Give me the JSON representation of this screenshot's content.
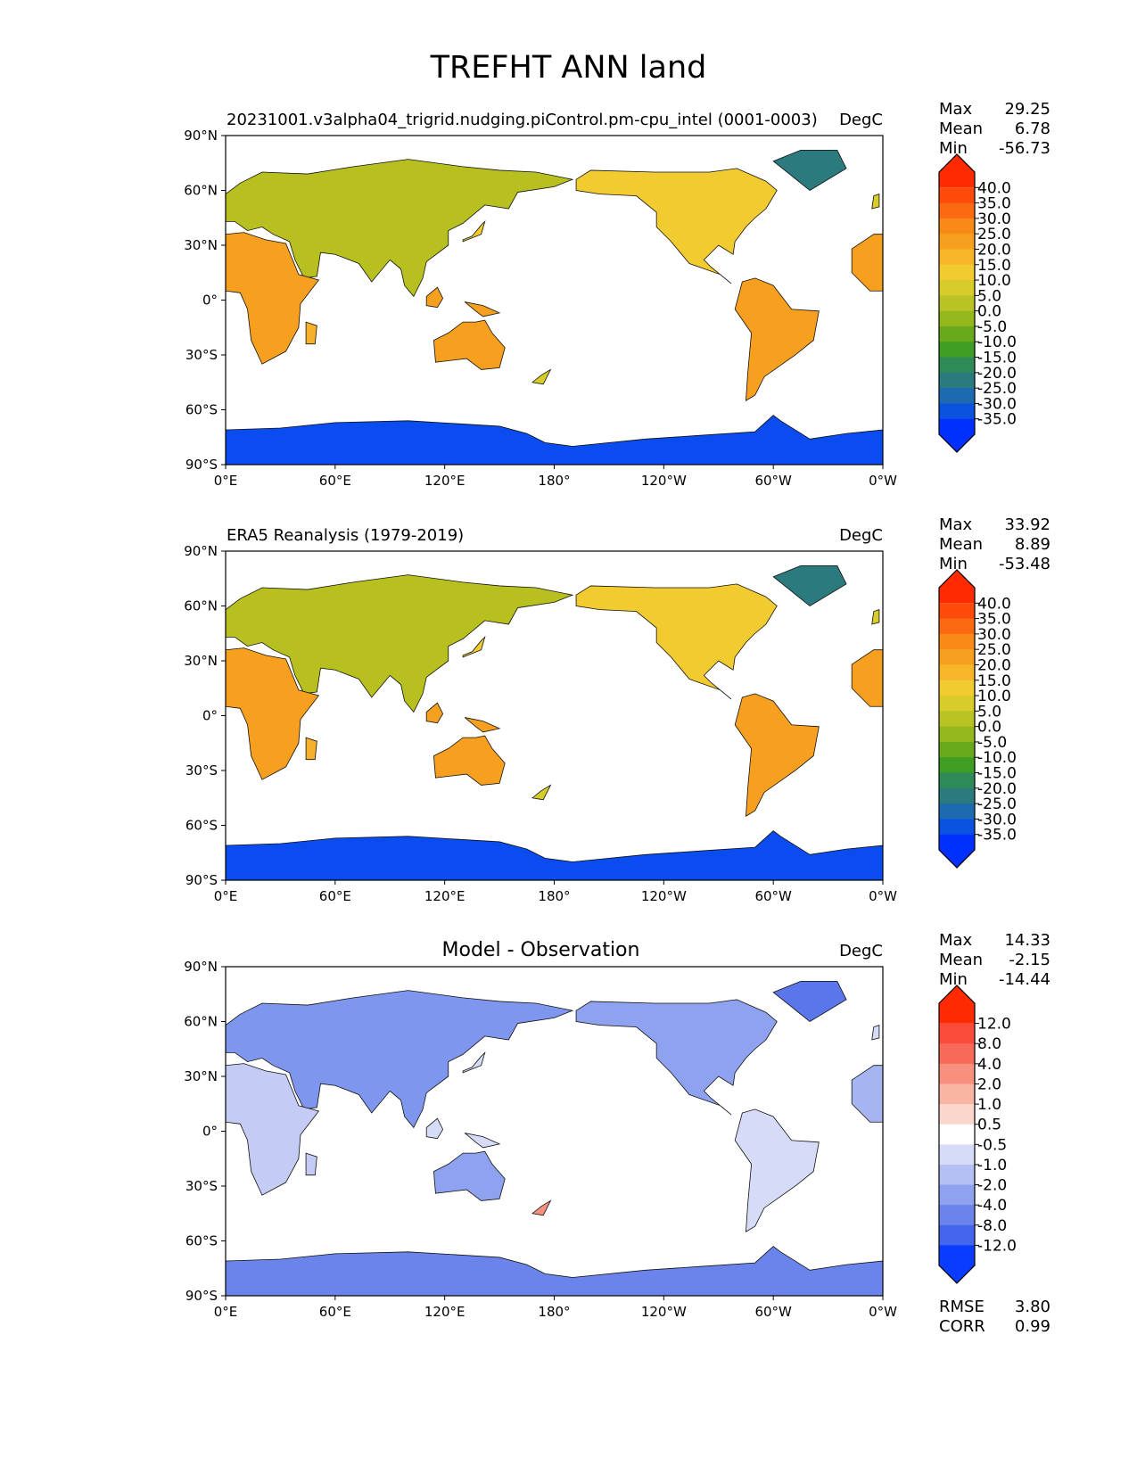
{
  "figure": {
    "title": "TREFHT ANN land"
  },
  "axes": {
    "lat_labels": [
      "90°N",
      "60°N",
      "30°N",
      "0°",
      "30°S",
      "60°S",
      "90°S"
    ],
    "lon_labels": [
      "0°E",
      "60°E",
      "120°E",
      "180°",
      "120°W",
      "60°W",
      "0°W"
    ]
  },
  "panels": [
    {
      "left_title": "20231001.v3alpha04_trigrid.nudging.piControl.pm-cpu_intel (0001-0003)",
      "center_title": "",
      "units": "DegC",
      "stats": [
        {
          "label": "Max",
          "value": "29.25"
        },
        {
          "label": "Mean",
          "value": "6.78"
        },
        {
          "label": "Min",
          "value": "-56.73"
        }
      ],
      "colorbar": {
        "levels": [
          "40.0",
          "35.0",
          "30.0",
          "25.0",
          "20.0",
          "15.0",
          "10.0",
          "5.0",
          "0.0",
          "-5.0",
          "-10.0",
          "-15.0",
          "-20.0",
          "-25.0",
          "-30.0",
          "-35.0"
        ],
        "colors": [
          "#ff2a00",
          "#ff4a0a",
          "#fb6a10",
          "#f88a18",
          "#f7a020",
          "#f7b62a",
          "#f2cb30",
          "#d7cc2a",
          "#b9c424",
          "#93b81c",
          "#6aaa1a",
          "#3f9d24",
          "#2e8a56",
          "#2a7a7e",
          "#1e6ab0",
          "#0a52e0",
          "#0030ff"
        ]
      },
      "footer_stats": []
    },
    {
      "left_title": "ERA5 Reanalysis (1979-2019)",
      "center_title": "",
      "units": "DegC",
      "stats": [
        {
          "label": "Max",
          "value": "33.92"
        },
        {
          "label": "Mean",
          "value": "8.89"
        },
        {
          "label": "Min",
          "value": "-53.48"
        }
      ],
      "colorbar": {
        "levels": [
          "40.0",
          "35.0",
          "30.0",
          "25.0",
          "20.0",
          "15.0",
          "10.0",
          "5.0",
          "0.0",
          "-5.0",
          "-10.0",
          "-15.0",
          "-20.0",
          "-25.0",
          "-30.0",
          "-35.0"
        ],
        "colors": [
          "#ff2a00",
          "#ff4a0a",
          "#fb6a10",
          "#f88a18",
          "#f7a020",
          "#f7b62a",
          "#f2cb30",
          "#d7cc2a",
          "#b9c424",
          "#93b81c",
          "#6aaa1a",
          "#3f9d24",
          "#2e8a56",
          "#2a7a7e",
          "#1e6ab0",
          "#0a52e0",
          "#0030ff"
        ]
      },
      "footer_stats": []
    },
    {
      "left_title": "",
      "center_title": "Model - Observation",
      "units": "DegC",
      "stats": [
        {
          "label": "Max",
          "value": "14.33"
        },
        {
          "label": "Mean",
          "value": "-2.15"
        },
        {
          "label": "Min",
          "value": "-14.44"
        }
      ],
      "colorbar": {
        "levels": [
          "12.0",
          "8.0",
          "4.0",
          "2.0",
          "1.0",
          "0.5",
          "-0.5",
          "-1.0",
          "-2.0",
          "-4.0",
          "-8.0",
          "-12.0"
        ],
        "colors": [
          "#ff2a00",
          "#fb4a3a",
          "#f76a5a",
          "#f7907c",
          "#f9b4a4",
          "#fbd6cc",
          "#ffffff",
          "#d6dcf8",
          "#b4c0f4",
          "#8ea2f0",
          "#6a84ec",
          "#4466ee",
          "#0a3cff"
        ]
      },
      "footer_stats": [
        {
          "label": "RMSE",
          "value": "3.80"
        },
        {
          "label": "CORR",
          "value": "0.99"
        }
      ]
    }
  ]
}
